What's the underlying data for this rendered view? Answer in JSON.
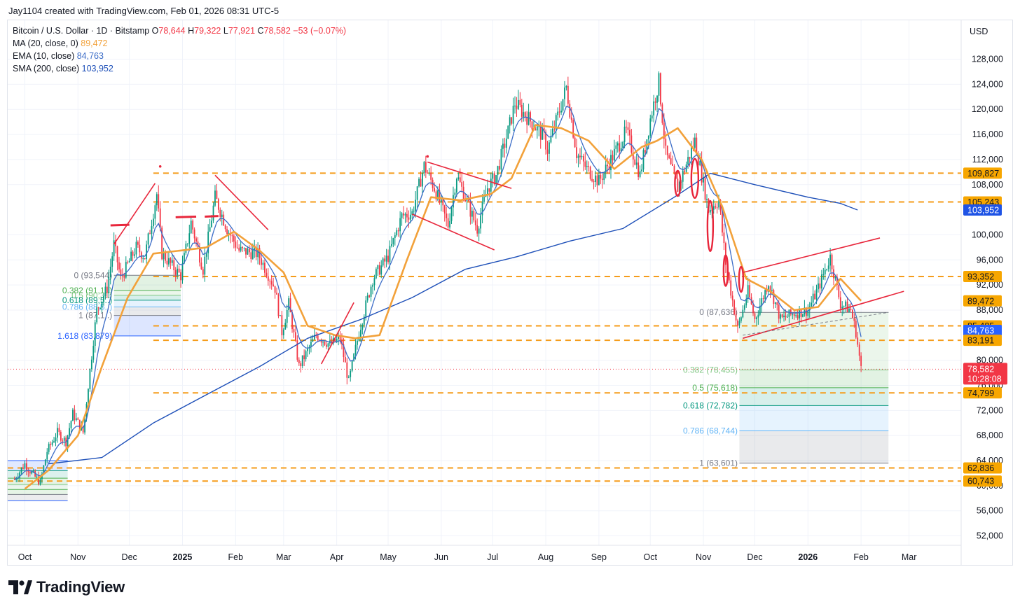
{
  "header": {
    "credit": "Jay1104 created with TradingView.com, Feb 01, 2026 08:31 UTC-5",
    "symbol": "Bitcoin / U.S. Dollar · 1D · Bitstamp",
    "ohlc": {
      "O": "78,644",
      "H": "79,322",
      "L": "77,921",
      "C": "78,582",
      "change": "−53 (−0.07%)"
    },
    "indicators": [
      {
        "label": "MA (20, close, 0)",
        "value": "89,472",
        "color": "#f2a13a"
      },
      {
        "label": "EMA (10, close)",
        "value": "84,763",
        "color": "#3b6cc7"
      },
      {
        "label": "SMA (200, close)",
        "value": "103,952",
        "color": "#1d4fb8"
      }
    ]
  },
  "brand": {
    "name": "TradingView"
  },
  "chart_data": {
    "type": "candlestick",
    "currency": "USD",
    "x_ticks": [
      {
        "label": "Oct",
        "date": "2024-10-01",
        "bold": false
      },
      {
        "label": "Nov",
        "date": "2024-11-01",
        "bold": false
      },
      {
        "label": "Dec",
        "date": "2024-12-01",
        "bold": false
      },
      {
        "label": "2025",
        "date": "2025-01-01",
        "bold": true
      },
      {
        "label": "Feb",
        "date": "2025-02-01",
        "bold": false
      },
      {
        "label": "Mar",
        "date": "2025-03-01",
        "bold": false
      },
      {
        "label": "Apr",
        "date": "2025-04-01",
        "bold": false
      },
      {
        "label": "May",
        "date": "2025-05-01",
        "bold": false
      },
      {
        "label": "Jun",
        "date": "2025-06-01",
        "bold": false
      },
      {
        "label": "Jul",
        "date": "2025-07-01",
        "bold": false
      },
      {
        "label": "Aug",
        "date": "2025-08-01",
        "bold": false
      },
      {
        "label": "Sep",
        "date": "2025-09-01",
        "bold": false
      },
      {
        "label": "Oct",
        "date": "2025-10-01",
        "bold": false
      },
      {
        "label": "Nov",
        "date": "2025-11-01",
        "bold": false
      },
      {
        "label": "Dec",
        "date": "2025-12-01",
        "bold": false
      },
      {
        "label": "2026",
        "date": "2026-01-01",
        "bold": true
      },
      {
        "label": "Feb",
        "date": "2026-02-01",
        "bold": false
      },
      {
        "label": "Mar",
        "date": "2026-03-01",
        "bold": false
      }
    ],
    "y_ticks": [
      128000,
      124000,
      120000,
      116000,
      112000,
      108000,
      100000,
      96000,
      92000,
      88000,
      80000,
      76000,
      72000,
      68000,
      64000,
      60000,
      56000,
      52000
    ],
    "ylim": [
      50500,
      134200
    ],
    "price_series": [
      [
        "2024-09-25",
        61000
      ],
      [
        "2024-10-01",
        63500
      ],
      [
        "2024-10-05",
        62000
      ],
      [
        "2024-10-10",
        60500
      ],
      [
        "2024-10-14",
        65500
      ],
      [
        "2024-10-20",
        68500
      ],
      [
        "2024-10-25",
        67000
      ],
      [
        "2024-10-29",
        71500
      ],
      [
        "2024-11-04",
        68500
      ],
      [
        "2024-11-07",
        76000
      ],
      [
        "2024-11-12",
        88000
      ],
      [
        "2024-11-18",
        91500
      ],
      [
        "2024-11-22",
        98500
      ],
      [
        "2024-11-26",
        93000
      ],
      [
        "2024-12-05",
        98000
      ],
      [
        "2024-12-10",
        96500
      ],
      [
        "2024-12-17",
        106500
      ],
      [
        "2024-12-20",
        97000
      ],
      [
        "2024-12-26",
        95000
      ],
      [
        "2024-12-31",
        93500
      ],
      [
        "2025-01-06",
        102000
      ],
      [
        "2025-01-13",
        94500
      ],
      [
        "2025-01-20",
        106000
      ],
      [
        "2025-01-27",
        101000
      ],
      [
        "2025-02-03",
        97500
      ],
      [
        "2025-02-14",
        97000
      ],
      [
        "2025-02-24",
        91500
      ],
      [
        "2025-02-28",
        84500
      ],
      [
        "2025-03-04",
        89000
      ],
      [
        "2025-03-10",
        79000
      ],
      [
        "2025-03-20",
        84000
      ],
      [
        "2025-03-28",
        82500
      ],
      [
        "2025-04-03",
        83500
      ],
      [
        "2025-04-08",
        76500
      ],
      [
        "2025-04-14",
        84500
      ],
      [
        "2025-04-22",
        93000
      ],
      [
        "2025-05-01",
        96500
      ],
      [
        "2025-05-09",
        103000
      ],
      [
        "2025-05-15",
        103500
      ],
      [
        "2025-05-22",
        111000
      ],
      [
        "2025-05-28",
        107500
      ],
      [
        "2025-06-05",
        101500
      ],
      [
        "2025-06-10",
        109500
      ],
      [
        "2025-06-17",
        104500
      ],
      [
        "2025-06-22",
        101000
      ],
      [
        "2025-06-28",
        107500
      ],
      [
        "2025-07-03",
        109500
      ],
      [
        "2025-07-10",
        116500
      ],
      [
        "2025-07-14",
        121000
      ],
      [
        "2025-07-22",
        118500
      ],
      [
        "2025-07-31",
        115500
      ],
      [
        "2025-08-02",
        113500
      ],
      [
        "2025-08-13",
        123500
      ],
      [
        "2025-08-19",
        113000
      ],
      [
        "2025-08-25",
        110500
      ],
      [
        "2025-09-01",
        108500
      ],
      [
        "2025-09-08",
        112000
      ],
      [
        "2025-09-17",
        116500
      ],
      [
        "2025-09-25",
        109500
      ],
      [
        "2025-10-01",
        118500
      ],
      [
        "2025-10-06",
        124500
      ],
      [
        "2025-10-10",
        113000
      ],
      [
        "2025-10-17",
        107500
      ],
      [
        "2025-10-27",
        115000
      ],
      [
        "2025-11-04",
        104000
      ],
      [
        "2025-11-10",
        105500
      ],
      [
        "2025-11-14",
        95500
      ],
      [
        "2025-11-21",
        85000
      ],
      [
        "2025-11-27",
        91000
      ],
      [
        "2025-12-01",
        86500
      ],
      [
        "2025-12-09",
        92500
      ],
      [
        "2025-12-16",
        86500
      ],
      [
        "2025-12-24",
        87500
      ],
      [
        "2026-01-01",
        88000
      ],
      [
        "2026-01-07",
        91500
      ],
      [
        "2026-01-14",
        96500
      ],
      [
        "2026-01-20",
        89000
      ],
      [
        "2026-01-26",
        88000
      ],
      [
        "2026-01-29",
        84500
      ],
      [
        "2026-02-01",
        78582
      ]
    ],
    "ma20": [
      [
        "2024-10-01",
        59500
      ],
      [
        "2024-10-15",
        62500
      ],
      [
        "2024-11-01",
        68000
      ],
      [
        "2024-11-15",
        79000
      ],
      [
        "2024-11-30",
        90000
      ],
      [
        "2024-12-15",
        97000
      ],
      [
        "2024-12-31",
        97500
      ],
      [
        "2025-01-15",
        98000
      ],
      [
        "2025-01-31",
        100500
      ],
      [
        "2025-02-15",
        97500
      ],
      [
        "2025-03-01",
        94000
      ],
      [
        "2025-03-15",
        85500
      ],
      [
        "2025-03-31",
        84000
      ],
      [
        "2025-04-12",
        83500
      ],
      [
        "2025-04-26",
        84000
      ],
      [
        "2025-05-12",
        96000
      ],
      [
        "2025-05-26",
        106000
      ],
      [
        "2025-06-12",
        105500
      ],
      [
        "2025-06-30",
        106500
      ],
      [
        "2025-07-12",
        109000
      ],
      [
        "2025-07-26",
        117500
      ],
      [
        "2025-08-10",
        117000
      ],
      [
        "2025-08-26",
        115000
      ],
      [
        "2025-09-10",
        110500
      ],
      [
        "2025-09-26",
        114000
      ],
      [
        "2025-10-05",
        115000
      ],
      [
        "2025-10-17",
        117000
      ],
      [
        "2025-10-31",
        112000
      ],
      [
        "2025-11-12",
        104500
      ],
      [
        "2025-11-26",
        93000
      ],
      [
        "2025-12-10",
        91000
      ],
      [
        "2025-12-24",
        88000
      ],
      [
        "2026-01-07",
        88500
      ],
      [
        "2026-01-20",
        93000
      ],
      [
        "2026-02-01",
        89472
      ]
    ],
    "sma200": [
      [
        "2024-10-15",
        63500
      ],
      [
        "2024-11-15",
        64500
      ],
      [
        "2024-12-15",
        70000
      ],
      [
        "2025-01-15",
        74500
      ],
      [
        "2025-02-15",
        79000
      ],
      [
        "2025-03-15",
        83500
      ],
      [
        "2025-04-15",
        86500
      ],
      [
        "2025-05-15",
        90000
      ],
      [
        "2025-06-15",
        94500
      ],
      [
        "2025-07-15",
        96500
      ],
      [
        "2025-08-15",
        99000
      ],
      [
        "2025-09-15",
        101000
      ],
      [
        "2025-10-15",
        106000
      ],
      [
        "2025-11-05",
        109800
      ],
      [
        "2025-12-01",
        108000
      ],
      [
        "2026-01-01",
        106000
      ],
      [
        "2026-01-20",
        105000
      ],
      [
        "2026-01-30",
        103952
      ]
    ],
    "fib_left": {
      "levels": [
        {
          "label": "0 (93,544)",
          "price": 93544,
          "color": "#787b86"
        },
        {
          "label": "0.382 (91,1..)",
          "price": 91120,
          "color": "#4caf50"
        },
        {
          "label": "0.5 (90,3..)",
          "price": 90360,
          "color": "#81c784"
        },
        {
          "label": "0.618 (89,5..)",
          "price": 89570,
          "color": "#089981"
        },
        {
          "label": "0.786 (88,5..)",
          "price": 88500,
          "color": "#64b5f6"
        },
        {
          "label": "1 (87,1..)",
          "price": 87140,
          "color": "#787b86"
        },
        {
          "label": "1.618 (83,879)",
          "price": 83879,
          "color": "#2962ff"
        }
      ]
    },
    "fib_right": {
      "levels": [
        {
          "label": "0 (87,636)",
          "price": 87636,
          "color": "#787b86"
        },
        {
          "label": "0.382 (78,455)",
          "price": 78455,
          "color": "#81c784"
        },
        {
          "label": "0.5 (75,618)",
          "price": 75618,
          "color": "#4caf50"
        },
        {
          "label": "0.618 (72,782)",
          "price": 72782,
          "color": "#089981"
        },
        {
          "label": "0.786 (68,744)",
          "price": 68744,
          "color": "#64b5f6"
        },
        {
          "label": "1 (63,601)",
          "price": 63601,
          "color": "#787b86"
        }
      ]
    },
    "horizontal_levels": [
      109827,
      105243,
      93352,
      85485,
      83191,
      74799,
      62836,
      60743
    ],
    "price_labels": [
      {
        "value": "109,827",
        "price": 109827,
        "bg": "#f7a600",
        "fg": "#131722"
      },
      {
        "value": "105,243",
        "price": 105243,
        "bg": "#f7a600",
        "fg": "#131722"
      },
      {
        "value": "103,952",
        "price": 103952,
        "bg": "#1e53e5",
        "fg": "#ffffff"
      },
      {
        "value": "93,352",
        "price": 93352,
        "bg": "#f7a600",
        "fg": "#131722"
      },
      {
        "value": "89,472",
        "price": 89472,
        "bg": "#f7a600",
        "fg": "#131722"
      },
      {
        "value": "85,485",
        "price": 85485,
        "bg": "#f7a600",
        "fg": "#131722"
      },
      {
        "value": "84,763",
        "price": 84763,
        "bg": "#2962ff",
        "fg": "#ffffff"
      },
      {
        "value": "83,191",
        "price": 83191,
        "bg": "#f7a600",
        "fg": "#131722"
      },
      {
        "value": "74,799",
        "price": 74799,
        "bg": "#f7a600",
        "fg": "#131722"
      },
      {
        "value": "62,836",
        "price": 62836,
        "bg": "#f7a600",
        "fg": "#131722"
      },
      {
        "value": "60,743",
        "price": 60743,
        "bg": "#f7a600",
        "fg": "#131722"
      }
    ],
    "current_price": {
      "value": "78,582",
      "countdown": "10:28:08",
      "price": 78582,
      "bg": "#f23645"
    }
  },
  "colors": {
    "up": "#089981",
    "down": "#f23645",
    "ma": "#f2a13a",
    "ema": "#3b6cc7",
    "sma": "#1d4fb8",
    "level": "#f59c1a",
    "drawing": "#e8263b"
  }
}
